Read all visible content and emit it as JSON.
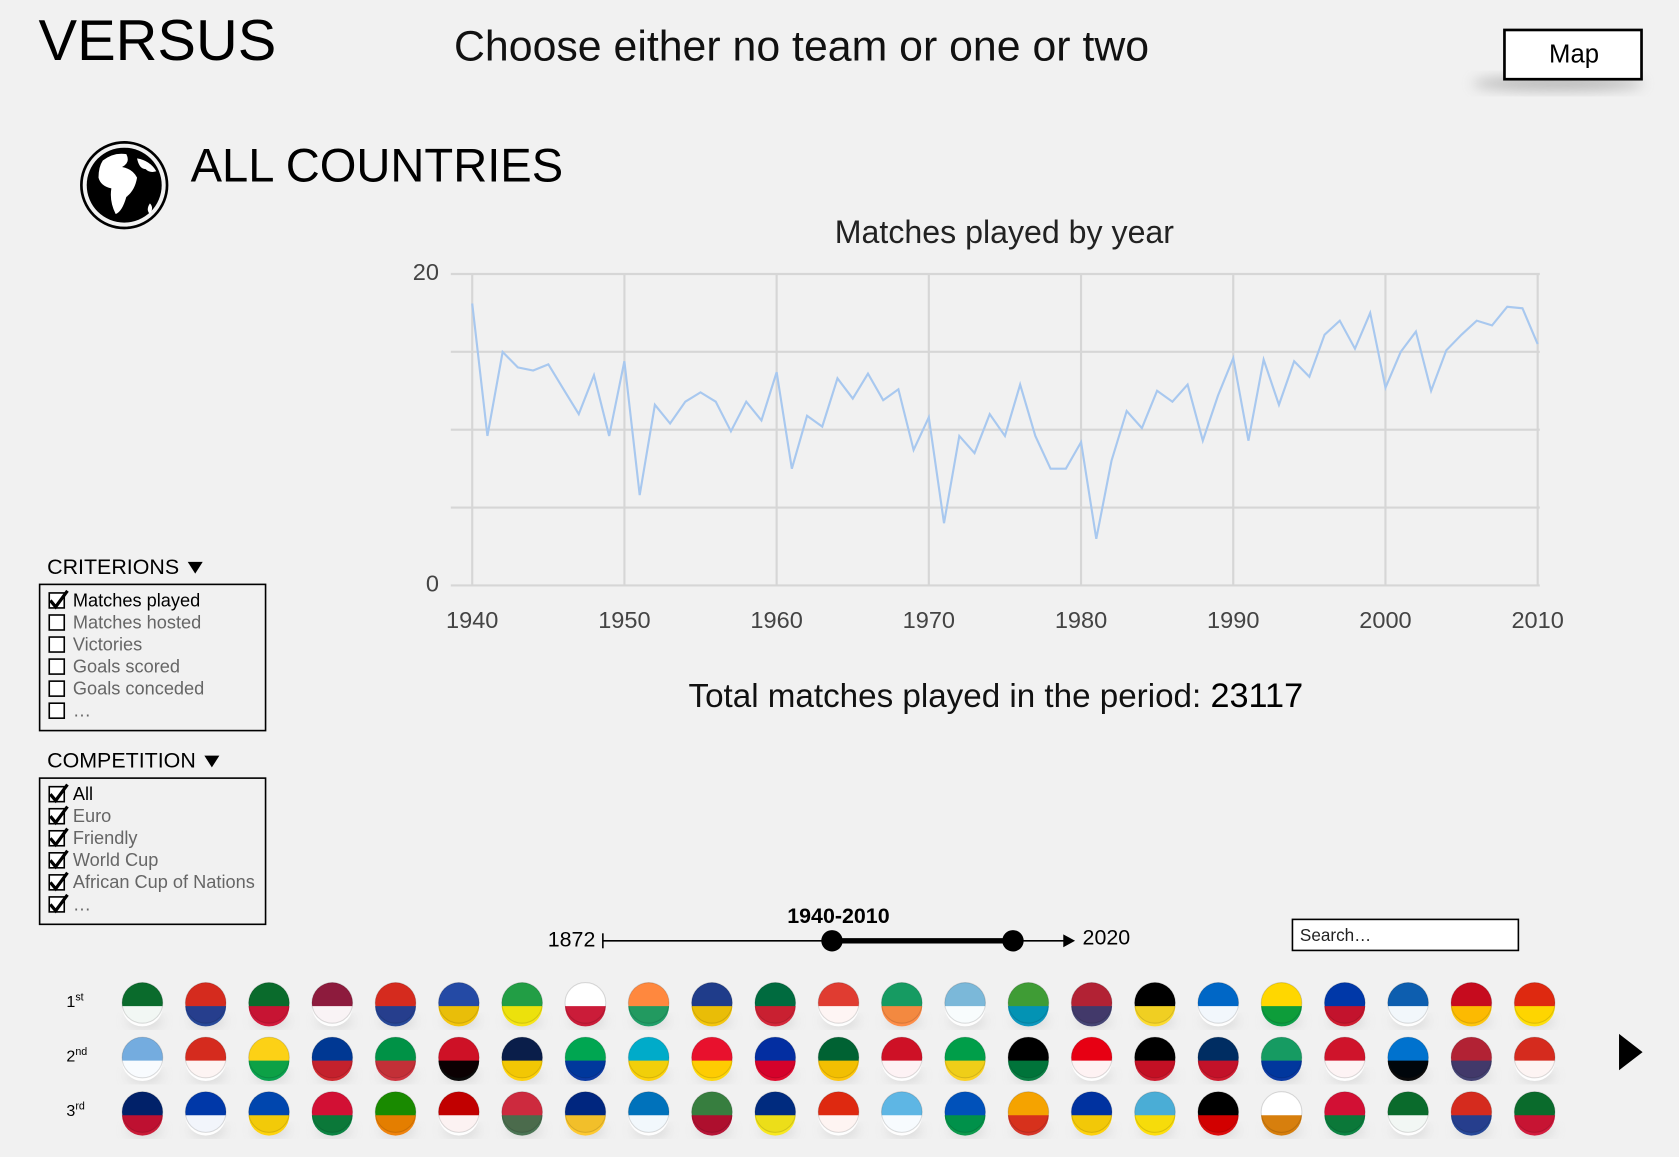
{
  "header": {
    "title": "VERSUS",
    "subtitle": "Choose either no team or one or two",
    "button": "Map"
  },
  "section": {
    "title": "ALL COUNTRIES"
  },
  "chart_data": {
    "type": "line",
    "title": "Matches played  by year",
    "x": [
      1940,
      1941,
      1942,
      1943,
      1944,
      1945,
      1946,
      1947,
      1948,
      1949,
      1950,
      1951,
      1952,
      1953,
      1954,
      1955,
      1956,
      1957,
      1958,
      1959,
      1960,
      1961,
      1962,
      1963,
      1964,
      1965,
      1966,
      1967,
      1968,
      1969,
      1970,
      1971,
      1972,
      1973,
      1974,
      1975,
      1976,
      1977,
      1978,
      1979,
      1980,
      1981,
      1982,
      1983,
      1984,
      1985,
      1986,
      1987,
      1988,
      1989,
      1990,
      1991,
      1992,
      1993,
      1994,
      1995,
      1996,
      1997,
      1998,
      1999,
      2000,
      2001,
      2002,
      2003,
      2004,
      2005,
      2006,
      2007,
      2008,
      2009,
      2010
    ],
    "values": [
      18.1,
      9.6,
      15.0,
      14.0,
      13.8,
      14.2,
      12.6,
      11.0,
      13.5,
      9.6,
      14.4,
      5.8,
      11.6,
      10.4,
      11.8,
      12.4,
      11.8,
      9.9,
      11.8,
      10.6,
      13.7,
      7.5,
      10.9,
      10.2,
      13.3,
      12.0,
      13.6,
      11.9,
      12.6,
      8.7,
      10.8,
      4.0,
      9.6,
      8.5,
      11.0,
      9.6,
      12.9,
      9.6,
      7.5,
      7.5,
      9.2,
      3.0,
      8.0,
      11.2,
      10.1,
      12.5,
      11.8,
      12.9,
      9.3,
      12.2,
      14.6,
      9.3,
      14.5,
      11.6,
      14.4,
      13.4,
      16.1,
      17.0,
      15.2,
      17.5,
      12.7,
      15.0,
      16.3,
      12.5,
      15.1,
      16.1,
      17.0,
      16.7,
      17.9,
      17.8,
      15.5
    ],
    "color": "#a8c8ef",
    "xlim": [
      1940,
      2010
    ],
    "ylim": [
      0,
      20
    ],
    "xticks": [
      1940,
      1950,
      1960,
      1970,
      1980,
      1990,
      2000,
      2010
    ],
    "yticks": [
      0,
      20
    ],
    "ygrid": [
      5,
      10,
      15
    ],
    "grid": true
  },
  "total": {
    "label": "Total matches played in the period:",
    "value": 23117
  },
  "criterions": {
    "title": "CRITERIONS",
    "items": [
      {
        "label": "Matches played",
        "checked": true
      },
      {
        "label": "Matches hosted",
        "checked": false
      },
      {
        "label": "Victories",
        "checked": false
      },
      {
        "label": "Goals scored",
        "checked": false
      },
      {
        "label": "Goals conceded",
        "checked": false
      },
      {
        "label": "…",
        "checked": false
      }
    ]
  },
  "competition": {
    "title": "COMPETITION",
    "items": [
      {
        "label": "All",
        "checked": true
      },
      {
        "label": "Euro",
        "checked": true
      },
      {
        "label": "Friendly",
        "checked": true
      },
      {
        "label": "World Cup",
        "checked": true
      },
      {
        "label": "African Cup of Nations",
        "checked": true
      },
      {
        "label": "…",
        "checked": true
      }
    ]
  },
  "period": {
    "label": "1940-2010",
    "start": "1872",
    "end": "2020"
  },
  "search": {
    "placeholder": "Search…"
  },
  "flag_rows": [
    {
      "num": "1",
      "suffix": "st"
    },
    {
      "num": "2",
      "suffix": "nd"
    },
    {
      "num": "3",
      "suffix": "rd"
    }
  ]
}
